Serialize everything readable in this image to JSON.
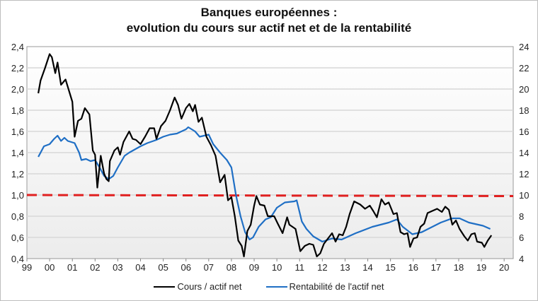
{
  "chart_data": {
    "type": "line",
    "title": [
      "Banques européennes :",
      "evolution du cours sur actif net et de la rentabilité"
    ],
    "xlim": [
      1999,
      2020.4
    ],
    "x_ticks": [
      "99",
      "00",
      "01",
      "02",
      "03",
      "04",
      "05",
      "06",
      "07",
      "08",
      "09",
      "10",
      "11",
      "12",
      "13",
      "14",
      "15",
      "16",
      "17",
      "18",
      "19",
      "20"
    ],
    "y_left": {
      "lim": [
        0.4,
        2.4
      ],
      "ticks": [
        "0,4",
        "0,6",
        "0,8",
        "1,0",
        "1,2",
        "1,4",
        "1,6",
        "1,8",
        "2,0",
        "2,2",
        "2,4"
      ]
    },
    "y_right": {
      "lim": [
        4,
        24
      ],
      "ticks": [
        "4",
        "6",
        "8",
        "10",
        "12",
        "14",
        "16",
        "18",
        "20",
        "22",
        "24"
      ]
    },
    "grid": true,
    "legend_position": "bottom",
    "reference_line": {
      "axis": "left",
      "values": [
        1.0,
        0.99
      ],
      "style": "dashed",
      "color": "#e02020"
    },
    "series": [
      {
        "name": "Cours / actif net",
        "axis": "left",
        "color": "#000000",
        "x": [
          1999.5,
          1999.6,
          1999.8,
          2000.0,
          2000.1,
          2000.25,
          2000.35,
          2000.5,
          2000.7,
          2000.9,
          2001.0,
          2001.1,
          2001.25,
          2001.4,
          2001.55,
          2001.75,
          2001.9,
          2002.0,
          2002.1,
          2002.25,
          2002.4,
          2002.5,
          2002.6,
          2002.65,
          2002.85,
          2003.0,
          2003.1,
          2003.25,
          2003.5,
          2003.65,
          2003.8,
          2004.0,
          2004.2,
          2004.4,
          2004.6,
          2004.7,
          2004.9,
          2005.1,
          2005.3,
          2005.5,
          2005.65,
          2005.8,
          2006.0,
          2006.15,
          2006.3,
          2006.4,
          2006.55,
          2006.7,
          2006.9,
          2007.1,
          2007.3,
          2007.5,
          2007.7,
          2007.85,
          2008.0,
          2008.15,
          2008.3,
          2008.45,
          2008.55,
          2008.7,
          2008.85,
          2009.0,
          2009.1,
          2009.25,
          2009.45,
          2009.6,
          2009.88,
          2010.04,
          2010.25,
          2010.45,
          2010.55,
          2010.82,
          2011.03,
          2011.23,
          2011.43,
          2011.6,
          2011.76,
          2011.91,
          2012.07,
          2012.43,
          2012.58,
          2012.74,
          2012.9,
          2013.05,
          2013.2,
          2013.4,
          2013.67,
          2013.88,
          2014.09,
          2014.24,
          2014.4,
          2014.6,
          2014.76,
          2014.92,
          2015.13,
          2015.28,
          2015.44,
          2015.6,
          2015.75,
          2015.86,
          2016.01,
          2016.17,
          2016.32,
          2016.48,
          2016.63,
          2016.84,
          2017.05,
          2017.26,
          2017.41,
          2017.57,
          2017.72,
          2017.88,
          2018.04,
          2018.25,
          2018.4,
          2018.56,
          2018.71,
          2018.81,
          2019.02,
          2019.13,
          2019.28,
          2019.44
        ],
        "y": [
          1.96,
          2.08,
          2.2,
          2.33,
          2.3,
          2.15,
          2.25,
          2.04,
          2.09,
          1.95,
          1.88,
          1.55,
          1.7,
          1.72,
          1.82,
          1.76,
          1.42,
          1.38,
          1.07,
          1.37,
          1.2,
          1.15,
          1.13,
          1.32,
          1.42,
          1.45,
          1.38,
          1.5,
          1.6,
          1.53,
          1.52,
          1.48,
          1.55,
          1.63,
          1.63,
          1.53,
          1.65,
          1.7,
          1.8,
          1.92,
          1.85,
          1.72,
          1.82,
          1.86,
          1.79,
          1.85,
          1.69,
          1.73,
          1.55,
          1.47,
          1.37,
          1.12,
          1.19,
          0.95,
          0.98,
          0.8,
          0.57,
          0.52,
          0.42,
          0.66,
          0.72,
          0.9,
          0.99,
          0.91,
          0.9,
          0.8,
          0.8,
          0.73,
          0.64,
          0.79,
          0.72,
          0.68,
          0.47,
          0.52,
          0.54,
          0.53,
          0.42,
          0.45,
          0.54,
          0.64,
          0.56,
          0.63,
          0.62,
          0.7,
          0.82,
          0.94,
          0.91,
          0.87,
          0.9,
          0.85,
          0.79,
          0.96,
          0.91,
          0.93,
          0.82,
          0.83,
          0.65,
          0.63,
          0.64,
          0.51,
          0.59,
          0.6,
          0.7,
          0.73,
          0.83,
          0.85,
          0.87,
          0.84,
          0.89,
          0.86,
          0.72,
          0.76,
          0.68,
          0.61,
          0.57,
          0.63,
          0.64,
          0.56,
          0.55,
          0.51,
          0.57,
          0.62
        ]
      },
      {
        "name": "Rentabilité de l'actif net",
        "axis": "right",
        "color": "#1f6fc5",
        "x": [
          1999.5,
          1999.75,
          2000.0,
          2000.2,
          2000.35,
          2000.5,
          2000.65,
          2000.8,
          2001.1,
          2001.3,
          2001.4,
          2001.6,
          2001.8,
          2002.0,
          2002.2,
          2002.4,
          2002.6,
          2002.8,
          2003.0,
          2003.3,
          2003.5,
          2004.0,
          2004.3,
          2004.7,
          2005.0,
          2005.3,
          2005.6,
          2006.0,
          2006.1,
          2006.4,
          2006.6,
          2007.0,
          2007.2,
          2007.5,
          2007.8,
          2008.0,
          2008.2,
          2008.4,
          2008.6,
          2008.8,
          2008.95,
          2009.2,
          2009.5,
          2009.73,
          2010.0,
          2010.35,
          2010.77,
          2010.87,
          2011.1,
          2011.3,
          2011.6,
          2012.0,
          2012.43,
          2012.85,
          2013.47,
          2014.2,
          2014.92,
          2015.28,
          2015.54,
          2015.96,
          2016.38,
          2017.21,
          2017.72,
          2018.04,
          2018.45,
          2019.07,
          2019.39
        ],
        "y": [
          13.6,
          14.6,
          14.8,
          15.3,
          15.6,
          15.1,
          15.4,
          15.1,
          14.9,
          14.0,
          13.3,
          13.4,
          13.2,
          13.3,
          12.6,
          11.8,
          11.5,
          11.8,
          12.6,
          13.7,
          14.0,
          14.6,
          14.9,
          15.2,
          15.5,
          15.7,
          15.8,
          16.2,
          16.4,
          16.0,
          15.5,
          15.7,
          14.8,
          14.0,
          13.3,
          12.6,
          10.0,
          8.0,
          6.5,
          5.8,
          6.0,
          7.0,
          7.7,
          7.9,
          8.8,
          9.3,
          9.4,
          9.5,
          7.5,
          6.8,
          6.1,
          5.6,
          5.9,
          5.8,
          6.4,
          7.0,
          7.4,
          7.7,
          7.0,
          6.3,
          6.5,
          7.4,
          7.8,
          7.8,
          7.4,
          7.1,
          6.8
        ]
      }
    ]
  }
}
